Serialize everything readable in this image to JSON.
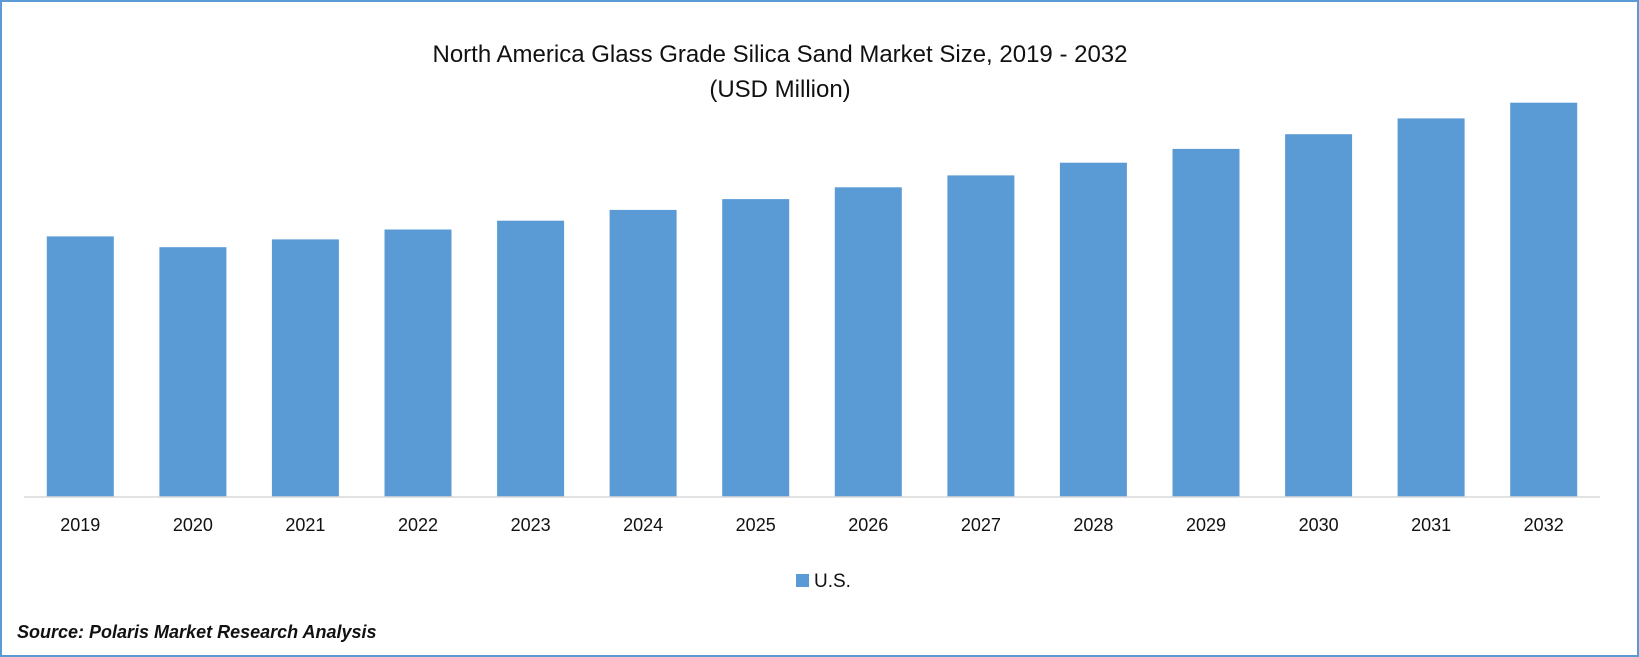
{
  "chart_data": {
    "type": "bar",
    "title": "North America Glass Grade Silica Sand Market Size, 2019 - 2032",
    "subtitle": "(USD Million)",
    "xlabel": "",
    "ylabel": "",
    "categories": [
      "2019",
      "2020",
      "2021",
      "2022",
      "2023",
      "2024",
      "2025",
      "2026",
      "2027",
      "2028",
      "2029",
      "2030",
      "2031",
      "2032"
    ],
    "series": [
      {
        "name": "U.S.",
        "color": "#5b9bd5",
        "values": [
          265,
          254,
          262,
          272,
          281,
          292,
          303,
          315,
          327,
          340,
          354,
          369,
          385,
          401
        ]
      }
    ],
    "ylim": [
      0,
      420
    ],
    "grid": false,
    "legend": "bottom-center",
    "colors": {
      "bar": "#5b9bd5",
      "axis": "#d9d9d9",
      "frame": "#5b9bd5",
      "text": "#111111"
    }
  },
  "source": "Source: Polaris Market Research Analysis"
}
